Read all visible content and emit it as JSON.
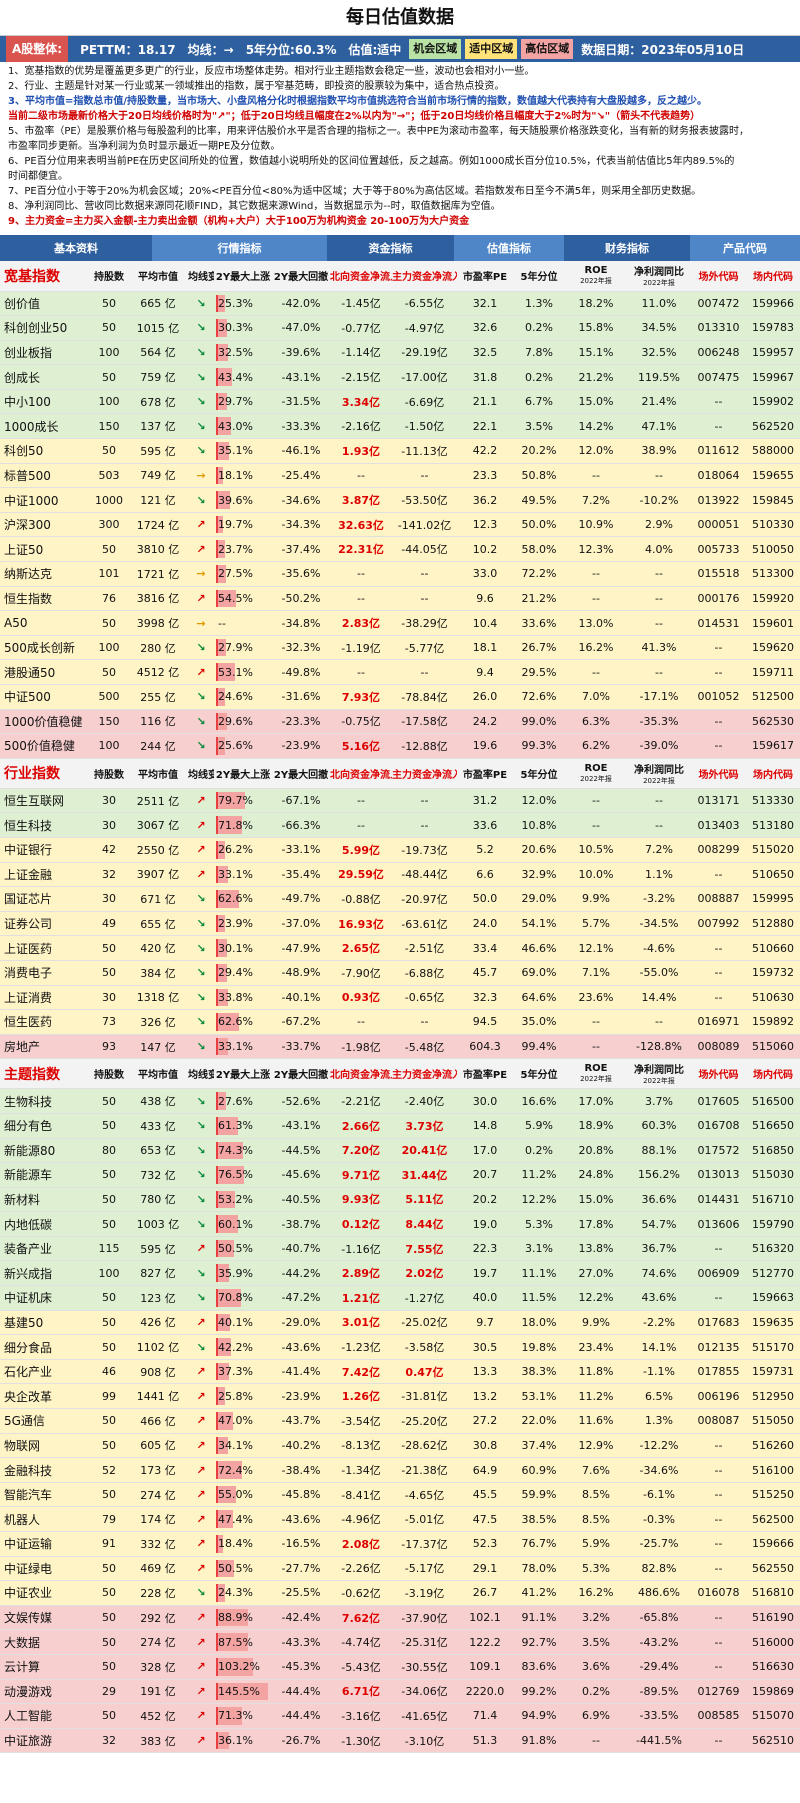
{
  "title": "每日估值数据",
  "summary": {
    "market": "A股整体:",
    "pettm": "PETTM：18.17",
    "ma": "均线：→",
    "pct5y": "5年分位:60.3%",
    "status": "估值:适中",
    "tags": [
      "机会区域",
      "适中区域",
      "高估区域"
    ],
    "date": "数据日期：2023年05月10日"
  },
  "notes": [
    {
      "text": "1、宽基指数的优势是覆盖更多更广的行业，反应市场整体走势。相对行业主题指数会稳定一些，波动也会相对小一些。",
      "style": ""
    },
    {
      "text": "2、行业、主题是针对某一行业或某一领域推出的指数，属于窄基范畴，即投资的股票较为集中，适合热点投资。",
      "style": ""
    },
    {
      "text": "3、平均市值=指数总市值/持股数量，当市场大、小盘风格分化时根据指数平均市值挑选符合当前市场行情的指数，数值越大代表持有大盘股越多，反之越少。",
      "style": "blue"
    },
    {
      "text": "当前二级市场最新价格大于20日均线价格时为\"↗\"；低于20日均线且幅度在2%以内为\"→\"；低于20日均线价格且幅度大于2%时为\"↘\"（箭头不代表趋势）",
      "style": "red"
    },
    {
      "text": "5、市盈率（PE）是股票价格与每股盈利的比率，用来评估股价水平是否合理的指标之一。表中PE为滚动市盈率，每天随股票价格涨跌变化，当有新的财务报表披露时，",
      "style": ""
    },
    {
      "text": "市盈率同步更新。当净利润为负时显示最近一期PE及分位数。",
      "style": ""
    },
    {
      "text": "6、PE百分位用来表明当前PE在历史区间所处的位置，数值越小说明所处的区间位置越低，反之越高。例如1000成长百分位10.5%，代表当前估值比5年内89.5%的",
      "style": ""
    },
    {
      "text": "时间都便宜。",
      "style": ""
    },
    {
      "text": "7、PE百分位小于等于20%为机会区域；20%<PE百分位<80%为适中区域；大于等于80%为高估区域。若指数发布日至今不满5年，则采用全部历史数据。",
      "style": ""
    },
    {
      "text": "8、净利润同比、营收同比数据来源同花顺FIND，其它数据来源Wind，当数据显示为--时，取值数据库为空值。",
      "style": ""
    },
    {
      "text": "9、主力资金=主力买入金额-主力卖出金额（机构+大户）大于100万为机构资金 20-100万为大户资金",
      "style": "red"
    }
  ],
  "header_groups": [
    "基本资料",
    "行情指标",
    "资金指标",
    "估值指标",
    "财务指标",
    "产品代码"
  ],
  "sections": [
    {
      "title": "宽基指数",
      "cols": [
        "持股数",
        "平均市值",
        "均线变化",
        "2Y最大上涨",
        "2Y最大回撤",
        "北向资金净流入金额",
        "主力资金净流入金额",
        "市盈率PE",
        "5年分位",
        "ROE",
        "净利润同比",
        "场外代码",
        "场内代码"
      ],
      "sub": [
        "2022年报",
        "2022年报"
      ],
      "rows": [
        [
          "创价值",
          "50",
          "665 亿",
          "↘",
          "25.3%",
          "-42.0%",
          "-1.45亿",
          "-6.55亿",
          "32.1",
          "1.3%",
          "18.2%",
          "11.0%",
          "007472",
          "159966",
          "g"
        ],
        [
          "科创创业50",
          "50",
          "1015 亿",
          "↘",
          "30.3%",
          "-47.0%",
          "-0.77亿",
          "-4.97亿",
          "32.6",
          "0.2%",
          "15.8%",
          "34.5%",
          "013310",
          "159783",
          "g"
        ],
        [
          "创业板指",
          "100",
          "564 亿",
          "↘",
          "32.5%",
          "-39.6%",
          "-1.14亿",
          "-29.19亿",
          "32.5",
          "7.8%",
          "15.1%",
          "32.5%",
          "006248",
          "159957",
          "g"
        ],
        [
          "创成长",
          "50",
          "759 亿",
          "↘",
          "43.4%",
          "-43.1%",
          "-2.15亿",
          "-17.00亿",
          "31.8",
          "0.2%",
          "21.2%",
          "119.5%",
          "007475",
          "159967",
          "g"
        ],
        [
          "中小100",
          "100",
          "678 亿",
          "↘",
          "29.7%",
          "-31.5%",
          "3.34亿",
          "-6.69亿",
          "21.1",
          "6.7%",
          "15.0%",
          "21.4%",
          "--",
          "159902",
          "g"
        ],
        [
          "1000成长",
          "150",
          "137 亿",
          "↘",
          "43.0%",
          "-33.3%",
          "-2.16亿",
          "-1.50亿",
          "22.1",
          "3.5%",
          "14.2%",
          "47.1%",
          "--",
          "562520",
          "g"
        ],
        [
          "科创50",
          "50",
          "595 亿",
          "↘",
          "35.1%",
          "-46.1%",
          "1.93亿",
          "-11.13亿",
          "42.2",
          "20.2%",
          "12.0%",
          "38.9%",
          "011612",
          "588000",
          "y"
        ],
        [
          "标普500",
          "503",
          "749 亿",
          "→",
          "18.1%",
          "-25.4%",
          "--",
          "--",
          "23.3",
          "50.8%",
          "--",
          "--",
          "018064",
          "159655",
          "y"
        ],
        [
          "中证1000",
          "1000",
          "121 亿",
          "↘",
          "39.6%",
          "-34.6%",
          "3.87亿",
          "-53.50亿",
          "36.2",
          "49.5%",
          "7.2%",
          "-10.2%",
          "013922",
          "159845",
          "y"
        ],
        [
          "沪深300",
          "300",
          "1724 亿",
          "↗",
          "19.7%",
          "-34.3%",
          "32.63亿",
          "-141.02亿",
          "12.3",
          "50.0%",
          "10.9%",
          "2.9%",
          "000051",
          "510330",
          "y"
        ],
        [
          "上证50",
          "50",
          "3810 亿",
          "↗",
          "23.7%",
          "-37.4%",
          "22.31亿",
          "-44.05亿",
          "10.2",
          "58.0%",
          "12.3%",
          "4.0%",
          "005733",
          "510050",
          "y"
        ],
        [
          "纳斯达克",
          "101",
          "1721 亿",
          "→",
          "27.5%",
          "-35.6%",
          "--",
          "--",
          "33.0",
          "72.2%",
          "--",
          "--",
          "015518",
          "513300",
          "y"
        ],
        [
          "恒生指数",
          "76",
          "3816 亿",
          "↗",
          "54.5%",
          "-50.2%",
          "--",
          "--",
          "9.6",
          "21.2%",
          "--",
          "--",
          "000176",
          "159920",
          "y"
        ],
        [
          "A50",
          "50",
          "3998 亿",
          "→",
          "--",
          "-34.8%",
          "2.83亿",
          "-38.29亿",
          "10.4",
          "33.6%",
          "13.0%",
          "--",
          "014531",
          "159601",
          "y"
        ],
        [
          "500成长创新",
          "100",
          "280 亿",
          "↘",
          "27.9%",
          "-32.3%",
          "-1.19亿",
          "-5.77亿",
          "18.1",
          "26.7%",
          "16.2%",
          "41.3%",
          "--",
          "159620",
          "y"
        ],
        [
          "港股通50",
          "50",
          "4512 亿",
          "↗",
          "53.1%",
          "-49.8%",
          "--",
          "--",
          "9.4",
          "29.5%",
          "--",
          "--",
          "--",
          "159711",
          "y"
        ],
        [
          "中证500",
          "500",
          "255 亿",
          "↘",
          "24.6%",
          "-31.6%",
          "7.93亿",
          "-78.84亿",
          "26.0",
          "72.6%",
          "7.0%",
          "-17.1%",
          "001052",
          "512500",
          "y"
        ],
        [
          "1000价值稳健",
          "150",
          "116 亿",
          "↘",
          "29.6%",
          "-23.3%",
          "-0.75亿",
          "-17.58亿",
          "24.2",
          "99.0%",
          "6.3%",
          "-35.3%",
          "--",
          "562530",
          "r"
        ],
        [
          "500价值稳健",
          "100",
          "244 亿",
          "↘",
          "25.6%",
          "-23.9%",
          "5.16亿",
          "-12.88亿",
          "19.6",
          "99.3%",
          "6.2%",
          "-39.0%",
          "--",
          "159617",
          "r"
        ]
      ]
    },
    {
      "title": "行业指数",
      "cols": [
        "持股数",
        "平均市值",
        "均线变化",
        "2Y最大上涨",
        "2Y最大回撤",
        "北向资金净流入金额",
        "主力资金净流入金额",
        "市盈率PE",
        "5年分位",
        "ROE",
        "净利润同比",
        "场外代码",
        "场内代码"
      ],
      "sub": [
        "2022年报",
        "2022年报"
      ],
      "rows": [
        [
          "恒生互联网",
          "30",
          "2511 亿",
          "↗",
          "79.7%",
          "-67.1%",
          "--",
          "--",
          "31.2",
          "12.0%",
          "--",
          "--",
          "013171",
          "513330",
          "g"
        ],
        [
          "恒生科技",
          "30",
          "3067 亿",
          "↗",
          "71.8%",
          "-66.3%",
          "--",
          "--",
          "33.6",
          "10.8%",
          "--",
          "--",
          "013403",
          "513180",
          "g"
        ],
        [
          "中证银行",
          "42",
          "2550 亿",
          "↗",
          "26.2%",
          "-33.1%",
          "5.99亿",
          "-19.73亿",
          "5.2",
          "20.6%",
          "10.5%",
          "7.2%",
          "008299",
          "515020",
          "y"
        ],
        [
          "上证金融",
          "32",
          "3907 亿",
          "↗",
          "33.1%",
          "-35.4%",
          "29.59亿",
          "-48.44亿",
          "6.6",
          "32.9%",
          "10.0%",
          "1.1%",
          "--",
          "510650",
          "y"
        ],
        [
          "国证芯片",
          "30",
          "671 亿",
          "↘",
          "62.6%",
          "-49.7%",
          "-0.88亿",
          "-20.97亿",
          "50.0",
          "29.0%",
          "9.9%",
          "-3.2%",
          "008887",
          "159995",
          "y"
        ],
        [
          "证券公司",
          "49",
          "655 亿",
          "↘",
          "23.9%",
          "-37.0%",
          "16.93亿",
          "-63.61亿",
          "24.0",
          "54.1%",
          "5.7%",
          "-34.5%",
          "007992",
          "512880",
          "y"
        ],
        [
          "上证医药",
          "50",
          "420 亿",
          "↘",
          "30.1%",
          "-47.9%",
          "2.65亿",
          "-2.51亿",
          "33.4",
          "46.6%",
          "12.1%",
          "-4.6%",
          "--",
          "510660",
          "y"
        ],
        [
          "消费电子",
          "50",
          "384 亿",
          "↘",
          "29.4%",
          "-48.9%",
          "-7.90亿",
          "-6.88亿",
          "45.7",
          "69.0%",
          "7.1%",
          "-55.0%",
          "--",
          "159732",
          "y"
        ],
        [
          "上证消费",
          "30",
          "1318 亿",
          "↘",
          "33.8%",
          "-40.1%",
          "0.93亿",
          "-0.65亿",
          "32.3",
          "64.6%",
          "23.6%",
          "14.4%",
          "--",
          "510630",
          "y"
        ],
        [
          "恒生医药",
          "73",
          "326 亿",
          "↘",
          "62.6%",
          "-67.2%",
          "--",
          "--",
          "94.5",
          "35.0%",
          "--",
          "--",
          "016971",
          "159892",
          "y"
        ],
        [
          "房地产",
          "93",
          "147 亿",
          "↘",
          "33.1%",
          "-33.7%",
          "-1.98亿",
          "-5.48亿",
          "604.3",
          "99.4%",
          "--",
          "-128.8%",
          "008089",
          "515060",
          "r"
        ]
      ]
    },
    {
      "title": "主题指数",
      "cols": [
        "持股数",
        "平均市值",
        "均线变化",
        "2Y最大上涨",
        "2Y最大回撤",
        "北向资金净流入金额",
        "主力资金净流入金额",
        "市盈率PE",
        "5年分位",
        "ROE",
        "净利润同比",
        "场外代码",
        "场内代码"
      ],
      "sub": [
        "2022年报",
        "2022年报"
      ],
      "rows": [
        [
          "生物科技",
          "50",
          "438 亿",
          "↘",
          "27.6%",
          "-52.6%",
          "-2.21亿",
          "-2.40亿",
          "30.0",
          "16.6%",
          "17.0%",
          "3.7%",
          "017605",
          "516500",
          "g"
        ],
        [
          "细分有色",
          "50",
          "433 亿",
          "↘",
          "61.3%",
          "-43.1%",
          "2.66亿",
          "3.73亿",
          "14.8",
          "5.9%",
          "18.9%",
          "60.3%",
          "016708",
          "516650",
          "g"
        ],
        [
          "新能源80",
          "80",
          "653 亿",
          "↘",
          "74.3%",
          "-44.5%",
          "7.20亿",
          "20.41亿",
          "17.0",
          "0.2%",
          "20.8%",
          "88.1%",
          "017572",
          "516850",
          "g"
        ],
        [
          "新能源车",
          "50",
          "732 亿",
          "↘",
          "76.5%",
          "-45.6%",
          "9.71亿",
          "31.44亿",
          "20.7",
          "11.2%",
          "24.8%",
          "156.2%",
          "013013",
          "515030",
          "g"
        ],
        [
          "新材料",
          "50",
          "780 亿",
          "↘",
          "53.2%",
          "-40.5%",
          "9.93亿",
          "5.11亿",
          "20.2",
          "12.2%",
          "15.0%",
          "36.6%",
          "014431",
          "516710",
          "g"
        ],
        [
          "内地低碳",
          "50",
          "1003 亿",
          "↘",
          "60.1%",
          "-38.7%",
          "0.12亿",
          "8.44亿",
          "19.0",
          "5.3%",
          "17.8%",
          "54.7%",
          "013606",
          "159790",
          "g"
        ],
        [
          "装备产业",
          "115",
          "595 亿",
          "↗",
          "50.5%",
          "-40.7%",
          "-1.16亿",
          "7.55亿",
          "22.3",
          "3.1%",
          "13.8%",
          "36.7%",
          "--",
          "516320",
          "g"
        ],
        [
          "新兴成指",
          "100",
          "827 亿",
          "↘",
          "35.9%",
          "-44.2%",
          "2.89亿",
          "2.02亿",
          "19.7",
          "11.1%",
          "27.0%",
          "74.6%",
          "006909",
          "512770",
          "g"
        ],
        [
          "中证机床",
          "50",
          "123 亿",
          "↘",
          "70.8%",
          "-47.2%",
          "1.21亿",
          "-1.27亿",
          "40.0",
          "11.5%",
          "12.2%",
          "43.6%",
          "--",
          "159663",
          "g"
        ],
        [
          "基建50",
          "50",
          "426 亿",
          "↗",
          "40.1%",
          "-29.0%",
          "3.01亿",
          "-25.02亿",
          "9.7",
          "18.0%",
          "9.9%",
          "-2.2%",
          "017683",
          "159635",
          "y"
        ],
        [
          "细分食品",
          "50",
          "1102 亿",
          "↘",
          "42.2%",
          "-43.6%",
          "-1.23亿",
          "-3.58亿",
          "30.5",
          "19.8%",
          "23.4%",
          "14.1%",
          "012135",
          "515170",
          "y"
        ],
        [
          "石化产业",
          "46",
          "908 亿",
          "↗",
          "37.3%",
          "-41.4%",
          "7.42亿",
          "0.47亿",
          "13.3",
          "38.3%",
          "11.8%",
          "-1.1%",
          "017855",
          "159731",
          "y"
        ],
        [
          "央企改革",
          "99",
          "1441 亿",
          "↗",
          "25.8%",
          "-23.9%",
          "1.26亿",
          "-31.81亿",
          "13.2",
          "53.1%",
          "11.2%",
          "6.5%",
          "006196",
          "512950",
          "y"
        ],
        [
          "5G通信",
          "50",
          "466 亿",
          "↗",
          "47.0%",
          "-43.7%",
          "-3.54亿",
          "-25.20亿",
          "27.2",
          "22.0%",
          "11.6%",
          "1.3%",
          "008087",
          "515050",
          "y"
        ],
        [
          "物联网",
          "50",
          "605 亿",
          "↗",
          "34.1%",
          "-40.2%",
          "-8.13亿",
          "-28.62亿",
          "30.8",
          "37.4%",
          "12.9%",
          "-12.2%",
          "--",
          "516260",
          "y"
        ],
        [
          "金融科技",
          "52",
          "173 亿",
          "↗",
          "72.4%",
          "-38.4%",
          "-1.34亿",
          "-21.38亿",
          "64.9",
          "60.9%",
          "7.6%",
          "-34.6%",
          "--",
          "516100",
          "y"
        ],
        [
          "智能汽车",
          "50",
          "274 亿",
          "↗",
          "55.0%",
          "-45.8%",
          "-8.41亿",
          "-4.65亿",
          "45.5",
          "59.9%",
          "8.5%",
          "-6.1%",
          "--",
          "515250",
          "y"
        ],
        [
          "机器人",
          "79",
          "174 亿",
          "↗",
          "47.4%",
          "-43.6%",
          "-4.96亿",
          "-5.01亿",
          "47.5",
          "38.5%",
          "8.5%",
          "-0.3%",
          "--",
          "562500",
          "y"
        ],
        [
          "中证运输",
          "91",
          "332 亿",
          "↗",
          "18.4%",
          "-16.5%",
          "2.08亿",
          "-17.37亿",
          "52.3",
          "76.7%",
          "5.9%",
          "-25.7%",
          "--",
          "159666",
          "y"
        ],
        [
          "中证绿电",
          "50",
          "469 亿",
          "↗",
          "50.5%",
          "-27.7%",
          "-2.26亿",
          "-5.17亿",
          "29.1",
          "78.0%",
          "5.3%",
          "82.8%",
          "--",
          "562550",
          "y"
        ],
        [
          "中证农业",
          "50",
          "228 亿",
          "↘",
          "24.3%",
          "-25.5%",
          "-0.62亿",
          "-3.19亿",
          "26.7",
          "41.2%",
          "16.2%",
          "486.6%",
          "016078",
          "516810",
          "y"
        ],
        [
          "文娱传媒",
          "50",
          "292 亿",
          "↗",
          "88.9%",
          "-42.4%",
          "7.62亿",
          "-37.90亿",
          "102.1",
          "91.1%",
          "3.2%",
          "-65.8%",
          "--",
          "516190",
          "r"
        ],
        [
          "大数据",
          "50",
          "274 亿",
          "↗",
          "87.5%",
          "-43.3%",
          "-4.74亿",
          "-25.31亿",
          "122.2",
          "92.7%",
          "3.5%",
          "-43.2%",
          "--",
          "516000",
          "r"
        ],
        [
          "云计算",
          "50",
          "328 亿",
          "↗",
          "103.2%",
          "-45.3%",
          "-5.43亿",
          "-30.55亿",
          "109.1",
          "83.6%",
          "3.6%",
          "-29.4%",
          "--",
          "516630",
          "r"
        ],
        [
          "动漫游戏",
          "29",
          "191 亿",
          "↗",
          "145.5%",
          "-44.4%",
          "6.71亿",
          "-34.06亿",
          "2220.0",
          "99.2%",
          "0.2%",
          "-89.5%",
          "012769",
          "159869",
          "r"
        ],
        [
          "人工智能",
          "50",
          "452 亿",
          "↗",
          "71.3%",
          "-44.4%",
          "-3.16亿",
          "-41.65亿",
          "71.4",
          "94.9%",
          "6.9%",
          "-33.5%",
          "008585",
          "515070",
          "r"
        ],
        [
          "中证旅游",
          "32",
          "383 亿",
          "↗",
          "36.1%",
          "-26.7%",
          "-1.30亿",
          "-3.10亿",
          "51.3",
          "91.8%",
          "--",
          "-441.5%",
          "--",
          "562510",
          "r"
        ]
      ]
    }
  ]
}
